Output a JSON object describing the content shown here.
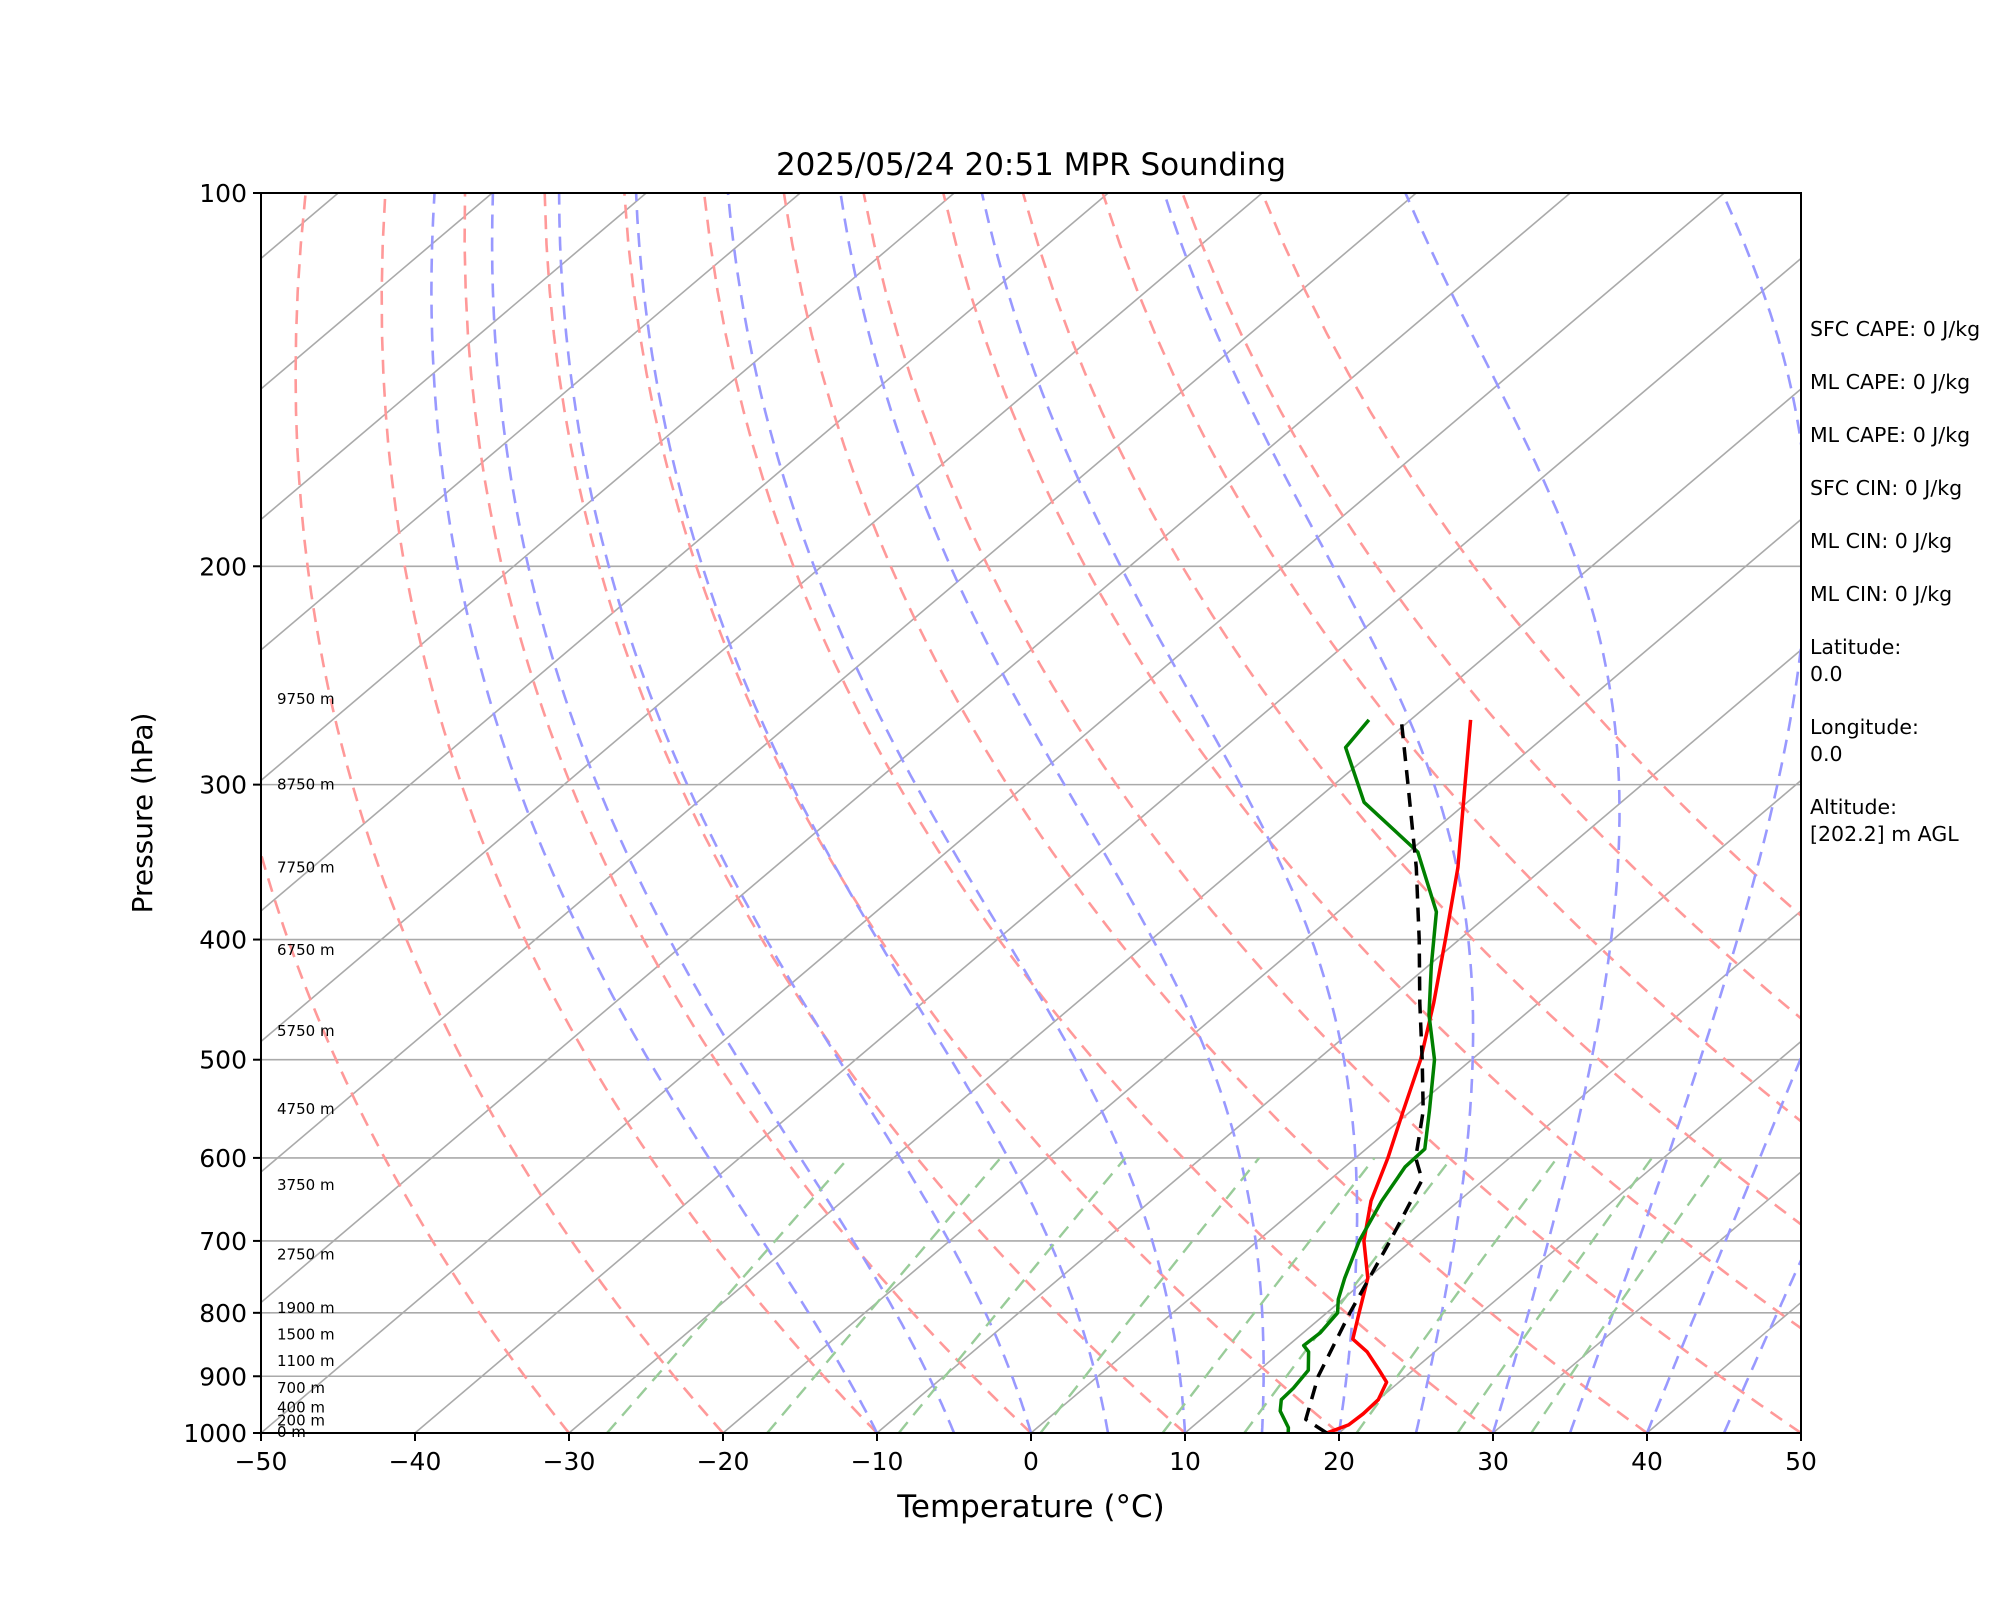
{
  "chart_data": {
    "type": "skew-t",
    "title": "2025/05/24 20:51 MPR Sounding",
    "xlabel": "Temperature (°C)",
    "ylabel": "Pressure (hPa)",
    "xlim": [
      -50,
      50
    ],
    "ylim": [
      1000,
      100
    ],
    "x_ticks": [
      -50,
      -40,
      -30,
      -20,
      -10,
      0,
      10,
      20,
      30,
      40,
      50
    ],
    "x_tick_labels": [
      "−50",
      "−40",
      "−30",
      "−20",
      "−10",
      "0",
      "10",
      "20",
      "30",
      "40",
      "50"
    ],
    "y_ticks": [
      1000,
      900,
      800,
      700,
      600,
      500,
      400,
      300,
      200,
      100
    ],
    "y_tick_labels": [
      "1000",
      "900",
      "800",
      "700",
      "600",
      "500",
      "400",
      "300",
      "200",
      "100"
    ],
    "grid": true,
    "height_labels": [
      {
        "p": 998,
        "label": "0 m"
      },
      {
        "p": 977,
        "label": "200 m"
      },
      {
        "p": 954,
        "label": "400 m"
      },
      {
        "p": 920,
        "label": "700 m"
      },
      {
        "p": 875,
        "label": "1100 m"
      },
      {
        "p": 833,
        "label": "1500 m"
      },
      {
        "p": 793,
        "label": "1900 m"
      },
      {
        "p": 718,
        "label": "2750 m"
      },
      {
        "p": 631,
        "label": "3750 m"
      },
      {
        "p": 548,
        "label": "4750 m"
      },
      {
        "p": 474,
        "label": "5750 m"
      },
      {
        "p": 408,
        "label": "6750 m"
      },
      {
        "p": 350,
        "label": "7750 m"
      },
      {
        "p": 300,
        "label": "8750 m"
      },
      {
        "p": 256,
        "label": "9750 m"
      }
    ],
    "series": [
      {
        "role": "temperature",
        "color": "#ff0000",
        "dash": "solid",
        "points": [
          [
            19.2,
            1000
          ],
          [
            20.0,
            985
          ],
          [
            20.1,
            965
          ],
          [
            20.0,
            940
          ],
          [
            19.2,
            910
          ],
          [
            17.8,
            890
          ],
          [
            15.6,
            860
          ],
          [
            13.7,
            840
          ],
          [
            12.1,
            800
          ],
          [
            10.0,
            750
          ],
          [
            6.9,
            700
          ],
          [
            4.3,
            650
          ],
          [
            2.1,
            600
          ],
          [
            -0.5,
            550
          ],
          [
            -3.3,
            500
          ],
          [
            -6.8,
            450
          ],
          [
            -10.9,
            400
          ],
          [
            -15.6,
            350
          ],
          [
            -21.5,
            300
          ],
          [
            -26.1,
            266
          ]
        ]
      },
      {
        "role": "dewpoint",
        "color": "#008000",
        "dash": "solid",
        "points": [
          [
            16.7,
            1000
          ],
          [
            16.3,
            990
          ],
          [
            14.5,
            960
          ],
          [
            13.7,
            940
          ],
          [
            13.6,
            920
          ],
          [
            13.2,
            890
          ],
          [
            11.8,
            860
          ],
          [
            11.0,
            850
          ],
          [
            11.1,
            830
          ],
          [
            10.7,
            800
          ],
          [
            9.7,
            780
          ],
          [
            8.5,
            750
          ],
          [
            6.6,
            700
          ],
          [
            5.0,
            650
          ],
          [
            3.9,
            610
          ],
          [
            3.8,
            590
          ],
          [
            1.2,
            550
          ],
          [
            -2.4,
            500
          ],
          [
            -6.2,
            460
          ],
          [
            -9.8,
            420
          ],
          [
            -13.6,
            380
          ],
          [
            -19.4,
            340
          ],
          [
            -26.7,
            310
          ],
          [
            -32.1,
            280
          ],
          [
            -32.7,
            266
          ]
        ]
      },
      {
        "role": "parcel",
        "color": "#000000",
        "dash": "dashed",
        "points": [
          [
            19.2,
            1000
          ],
          [
            16.8,
            975
          ],
          [
            14.3,
            900
          ],
          [
            11.5,
            800
          ],
          [
            8.6,
            700
          ],
          [
            6.0,
            625
          ],
          [
            3.9,
            600
          ],
          [
            0.8,
            550
          ],
          [
            -3.2,
            500
          ],
          [
            -7.7,
            450
          ],
          [
            -12.6,
            400
          ],
          [
            -18.3,
            350
          ],
          [
            -25.2,
            300
          ],
          [
            -30.6,
            266
          ]
        ]
      }
    ],
    "reference_lines": {
      "isotherm_step_c": 10,
      "isotherm_color": "#aaaaaa",
      "dry_adiabats_c": [
        -30,
        -20,
        -10,
        0,
        10,
        20,
        30,
        40,
        50,
        60,
        70,
        80,
        90,
        100
      ],
      "dry_adiabat_color": "#ff9999",
      "moist_adiabats_c": [
        -10,
        -5,
        0,
        5,
        10,
        15,
        20,
        25,
        30,
        35,
        40,
        45
      ],
      "moist_adiabat_color": "#9999ff",
      "mixing_ratio_lines_gkg": [
        0.4,
        1,
        2,
        4,
        7,
        10,
        16,
        24,
        32
      ],
      "mixing_ratio_color": "#99cc99"
    }
  },
  "stats": [
    "SFC CAPE: 0 J/kg",
    "ML CAPE: 0 J/kg",
    "ML CAPE: 0 J/kg",
    "SFC CIN: 0 J/kg",
    "ML CIN: 0 J/kg",
    "ML CIN: 0 J/kg",
    "Latitude:\n0.0",
    "Longitude:\n0.0",
    "Altitude:\n[202.2] m AGL"
  ]
}
